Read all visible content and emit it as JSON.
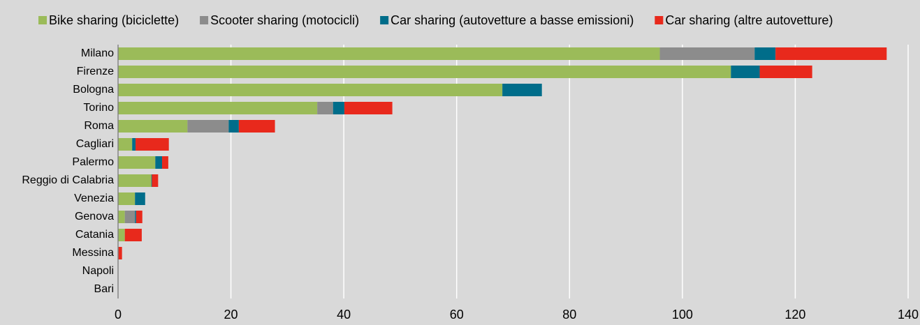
{
  "chart_data": {
    "type": "stacked-bar-horizontal",
    "categories": [
      "Milano",
      "Firenze",
      "Bologna",
      "Torino",
      "Roma",
      "Cagliari",
      "Palermo",
      "Reggio di Calabria",
      "Venezia",
      "Genova",
      "Catania",
      "Messina",
      "Napoli",
      "Bari"
    ],
    "series": [
      {
        "name": "Bike sharing (biciclette)",
        "color": "#9bbb59",
        "values": [
          96,
          108.6,
          68.1,
          35.3,
          12.3,
          2.5,
          6.6,
          5.9,
          3.0,
          1.2,
          1.2,
          0,
          0,
          0
        ]
      },
      {
        "name": "Scooter sharing (motocicli)",
        "color": "#8c8c8c",
        "values": [
          16.8,
          0,
          0,
          2.8,
          7.3,
          0,
          0,
          0,
          0,
          1.8,
          0,
          0,
          0,
          0
        ]
      },
      {
        "name": "Car sharing (autovetture a basse emissioni)",
        "color": "#006d8a",
        "values": [
          3.7,
          5.1,
          7.0,
          2.0,
          1.8,
          0.6,
          1.2,
          0.1,
          1.8,
          0.2,
          0,
          0,
          0,
          0
        ]
      },
      {
        "name": "Car sharing (altre autovetture)",
        "color": "#e8291c",
        "values": [
          19.7,
          9.3,
          0,
          8.5,
          6.4,
          5.9,
          1.1,
          1.1,
          0,
          1.1,
          3.0,
          0.7,
          0,
          0
        ]
      }
    ],
    "xlim": [
      0,
      140
    ],
    "xticks": [
      0,
      20,
      40,
      60,
      80,
      100,
      120,
      140
    ],
    "grid": true,
    "legend": "top"
  }
}
